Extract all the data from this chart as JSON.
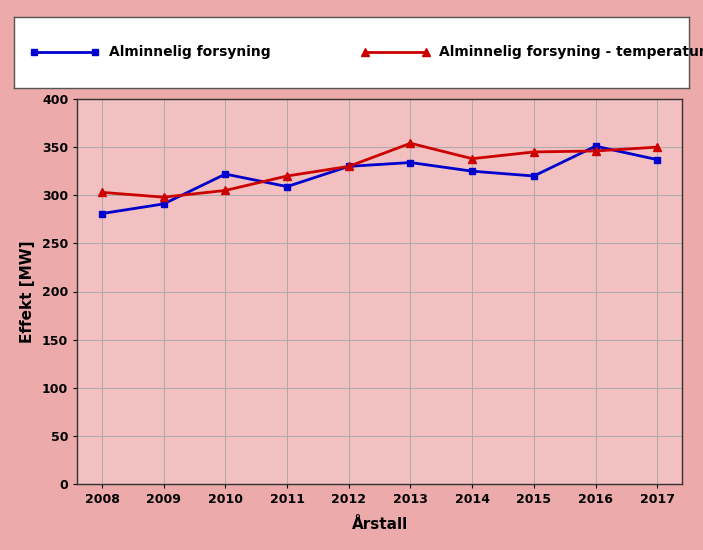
{
  "years": [
    2008,
    2009,
    2010,
    2011,
    2012,
    2013,
    2014,
    2015,
    2016,
    2017
  ],
  "blue_line": [
    281,
    291,
    322,
    309,
    330,
    334,
    325,
    320,
    351,
    337
  ],
  "red_line": [
    303,
    298,
    305,
    320,
    330,
    354,
    338,
    345,
    346,
    350
  ],
  "blue_label": "Alminnelig forsyning",
  "red_label": "Alminnelig forsyning - temperaturkorrigert",
  "ylabel": "Effekt [MW]",
  "xlabel": "Årstall",
  "ylim": [
    0,
    400
  ],
  "yticks": [
    0,
    50,
    100,
    150,
    200,
    250,
    300,
    350,
    400
  ],
  "blue_color": "#0000CC",
  "red_color": "#CC0000",
  "background_color": "#EDAAAA",
  "plot_bg_color": "#F2C0C0",
  "grid_color": "#AAAAAA",
  "legend_bg": "#FFFFFF",
  "outer_bg": "#EDAAAA"
}
